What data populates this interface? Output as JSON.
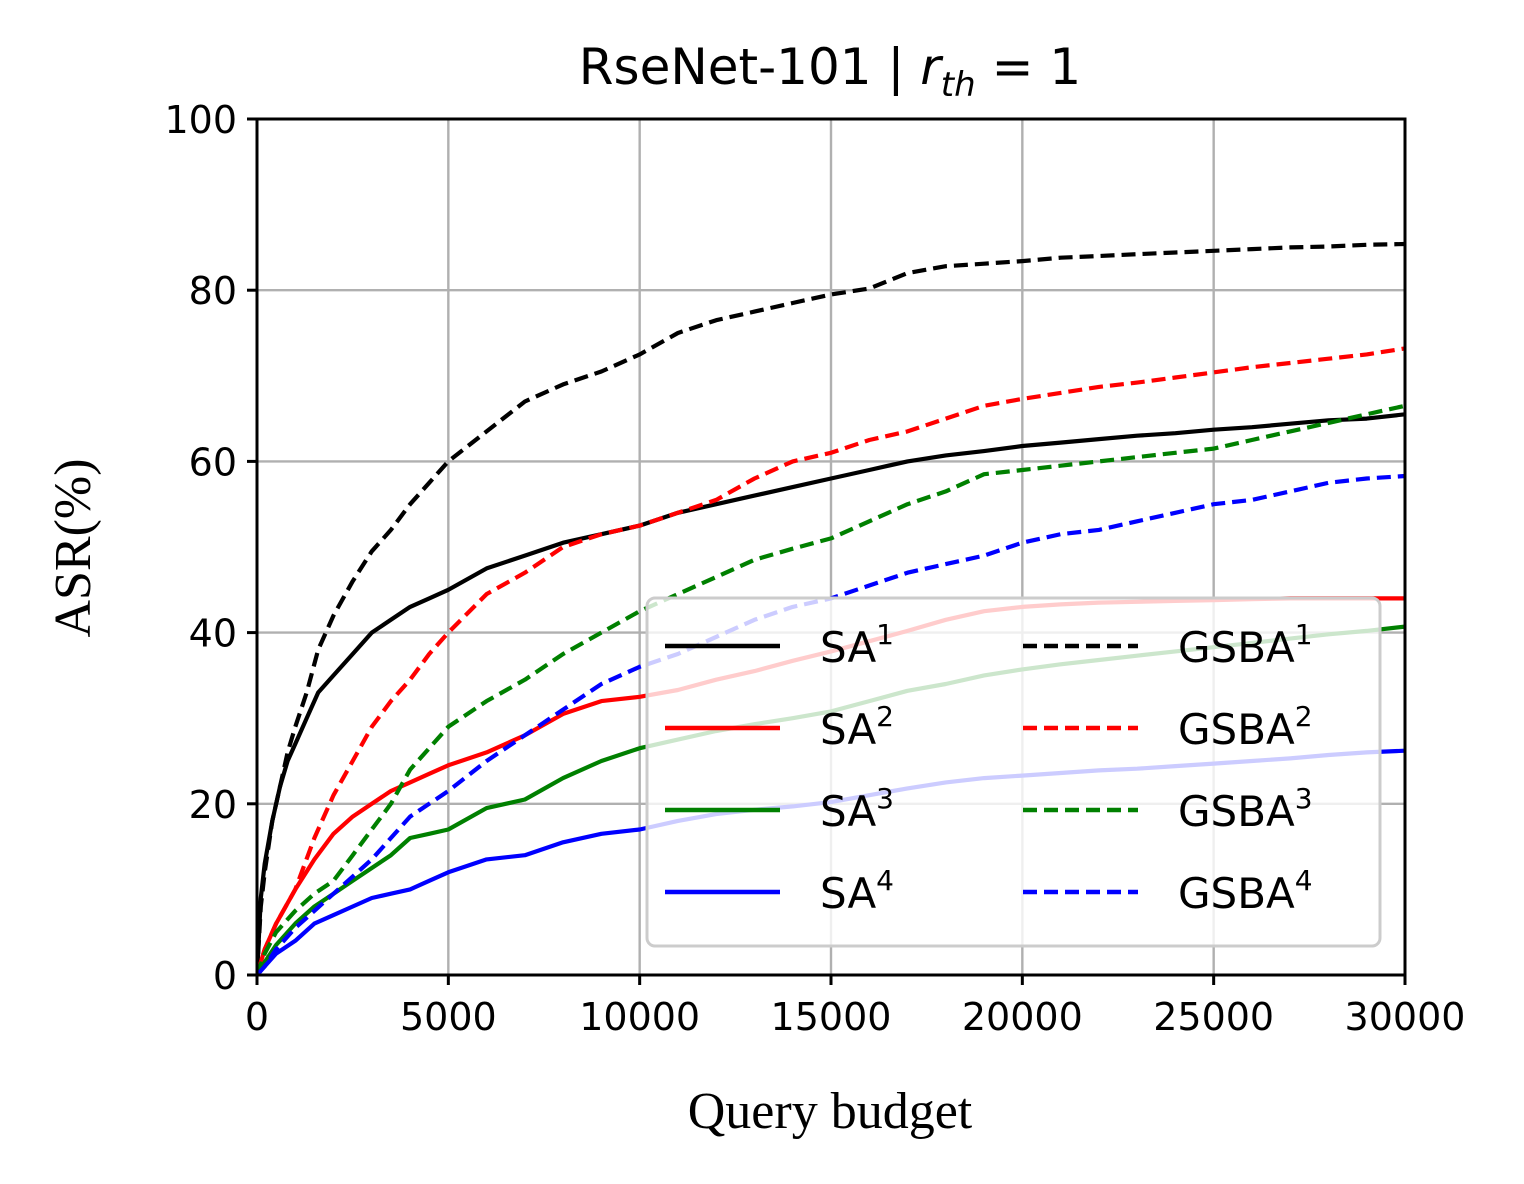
{
  "chart_data": {
    "type": "line",
    "title": {
      "prefix": "RseNet-101  |  ",
      "var": "r",
      "var_sub": "th",
      "suffix": " = 1"
    },
    "xlabel": "Query budget",
    "ylabel": "ASR(%)",
    "xlim": [
      0,
      30000
    ],
    "ylim": [
      0,
      100
    ],
    "xticks": [
      0,
      5000,
      10000,
      15000,
      20000,
      25000,
      30000
    ],
    "yticks": [
      0,
      20,
      40,
      60,
      80,
      100
    ],
    "grid": true,
    "legend": {
      "location": "lower-right",
      "columns": 2
    },
    "series": [
      {
        "name": "SA",
        "sup": "1",
        "color": "#000000",
        "style": "solid",
        "x": [
          0,
          100,
          200,
          400,
          600,
          800,
          1000,
          1300,
          1600,
          2000,
          2500,
          3000,
          3500,
          4000,
          4500,
          5000,
          6000,
          7000,
          8000,
          9000,
          10000,
          11000,
          12000,
          13000,
          14000,
          15000,
          16000,
          17000,
          18000,
          19000,
          20000,
          21000,
          22000,
          23000,
          24000,
          25000,
          26000,
          27000,
          28000,
          29000,
          30000
        ],
        "y": [
          0,
          9,
          13,
          18,
          22,
          25,
          27,
          30,
          33,
          35,
          37.5,
          40,
          41.5,
          43,
          44,
          45,
          47.5,
          49,
          50.5,
          51.5,
          52.5,
          54,
          55,
          56,
          57,
          58,
          59,
          60,
          60.7,
          61.2,
          61.8,
          62.2,
          62.6,
          63,
          63.3,
          63.7,
          64,
          64.4,
          64.8,
          65,
          65.5
        ]
      },
      {
        "name": "SA",
        "sup": "2",
        "color": "#ff0000",
        "style": "solid",
        "x": [
          0,
          200,
          500,
          1000,
          1500,
          2000,
          2500,
          3000,
          3500,
          4000,
          4500,
          5000,
          6000,
          7000,
          8000,
          9000,
          10000,
          11000,
          12000,
          13000,
          14000,
          15000,
          16000,
          17000,
          18000,
          19000,
          20000,
          21000,
          22000,
          23000,
          24000,
          25000,
          26000,
          27000,
          28000,
          29000,
          30000
        ],
        "y": [
          0,
          3,
          6,
          10,
          13.5,
          16.5,
          18.5,
          20,
          21.5,
          22.5,
          23.5,
          24.5,
          26,
          28,
          30.5,
          32,
          32.5,
          33.3,
          34.5,
          35.5,
          36.7,
          37.8,
          39,
          40.2,
          41.5,
          42.5,
          43,
          43.3,
          43.5,
          43.6,
          43.7,
          43.8,
          43.9,
          44,
          44,
          44,
          44
        ]
      },
      {
        "name": "SA",
        "sup": "3",
        "color": "#008000",
        "style": "solid",
        "x": [
          0,
          200,
          500,
          1000,
          1500,
          2000,
          2500,
          3000,
          3500,
          4000,
          4500,
          5000,
          6000,
          7000,
          8000,
          9000,
          10000,
          11000,
          12000,
          13000,
          14000,
          15000,
          16000,
          17000,
          18000,
          19000,
          20000,
          21000,
          22000,
          23000,
          24000,
          25000,
          26000,
          27000,
          28000,
          29000,
          30000
        ],
        "y": [
          0,
          1.5,
          3.5,
          6,
          8,
          9.5,
          11,
          12.5,
          14,
          16,
          16.5,
          17,
          19.5,
          20.5,
          23,
          25,
          26.5,
          27.5,
          28.5,
          29.3,
          30,
          30.8,
          32,
          33.2,
          34,
          35,
          35.7,
          36.3,
          36.8,
          37.3,
          37.8,
          38.3,
          38.8,
          39.3,
          39.8,
          40.2,
          40.7
        ]
      },
      {
        "name": "SA",
        "sup": "4",
        "color": "#0000ff",
        "style": "solid",
        "x": [
          0,
          200,
          500,
          1000,
          1500,
          2000,
          2500,
          3000,
          3500,
          4000,
          4500,
          5000,
          6000,
          7000,
          8000,
          9000,
          10000,
          11000,
          12000,
          13000,
          14000,
          15000,
          16000,
          17000,
          18000,
          19000,
          20000,
          21000,
          22000,
          23000,
          24000,
          25000,
          26000,
          27000,
          28000,
          29000,
          30000
        ],
        "y": [
          0,
          1,
          2.5,
          4,
          6,
          7,
          8,
          9,
          9.5,
          10,
          11,
          12,
          13.5,
          14,
          15.5,
          16.5,
          17,
          18,
          18.8,
          19.3,
          19.7,
          20.2,
          21,
          21.8,
          22.5,
          23,
          23.3,
          23.6,
          23.9,
          24.1,
          24.4,
          24.7,
          25,
          25.3,
          25.7,
          26,
          26.2
        ]
      },
      {
        "name": "GSBA",
        "sup": "1",
        "color": "#000000",
        "style": "dashed",
        "x": [
          0,
          100,
          200,
          400,
          600,
          800,
          1000,
          1300,
          1600,
          2000,
          2500,
          3000,
          3500,
          4000,
          4500,
          5000,
          6000,
          7000,
          8000,
          9000,
          10000,
          11000,
          12000,
          13000,
          14000,
          15000,
          16000,
          17000,
          18000,
          19000,
          20000,
          21000,
          22000,
          23000,
          24000,
          25000,
          26000,
          27000,
          28000,
          29000,
          30000
        ],
        "y": [
          0,
          8,
          12,
          18,
          22,
          26,
          29,
          33,
          38,
          42,
          46,
          49.5,
          52,
          55,
          57.5,
          60,
          63.5,
          67,
          69,
          70.5,
          72.5,
          75,
          76.5,
          77.5,
          78.5,
          79.5,
          80.2,
          82,
          82.8,
          83.1,
          83.4,
          83.8,
          84,
          84.2,
          84.4,
          84.6,
          84.8,
          85,
          85.1,
          85.3,
          85.4
        ]
      },
      {
        "name": "GSBA",
        "sup": "2",
        "color": "#ff0000",
        "style": "dashed",
        "x": [
          0,
          200,
          500,
          1000,
          1500,
          2000,
          2500,
          3000,
          3500,
          4000,
          4500,
          5000,
          6000,
          7000,
          8000,
          9000,
          10000,
          11000,
          12000,
          13000,
          14000,
          15000,
          16000,
          17000,
          18000,
          19000,
          20000,
          21000,
          22000,
          23000,
          24000,
          25000,
          26000,
          27000,
          28000,
          29000,
          30000
        ],
        "y": [
          0,
          3,
          6,
          10,
          16,
          21,
          25,
          29,
          32,
          34.5,
          37.5,
          40,
          44.5,
          47,
          50,
          51.5,
          52.5,
          54,
          55.5,
          58,
          60,
          61,
          62.5,
          63.5,
          65,
          66.5,
          67.3,
          68,
          68.7,
          69.2,
          69.8,
          70.4,
          71,
          71.5,
          72,
          72.5,
          73.2
        ]
      },
      {
        "name": "GSBA",
        "sup": "3",
        "color": "#008000",
        "style": "dashed",
        "x": [
          0,
          200,
          500,
          1000,
          1500,
          2000,
          2500,
          3000,
          3500,
          4000,
          4500,
          5000,
          6000,
          7000,
          8000,
          9000,
          10000,
          11000,
          12000,
          13000,
          14000,
          15000,
          16000,
          17000,
          18000,
          19000,
          20000,
          21000,
          22000,
          23000,
          24000,
          25000,
          26000,
          27000,
          28000,
          29000,
          30000
        ],
        "y": [
          0,
          2.5,
          5,
          7.5,
          9.5,
          11,
          14,
          17,
          20,
          24,
          26.5,
          29,
          32,
          34.5,
          37.5,
          40,
          42.5,
          44.5,
          46.5,
          48.5,
          49.8,
          51,
          53,
          55,
          56.5,
          58.5,
          59,
          59.5,
          60,
          60.5,
          61,
          61.5,
          62.5,
          63.5,
          64.5,
          65.5,
          66.5
        ]
      },
      {
        "name": "GSBA",
        "sup": "4",
        "color": "#0000ff",
        "style": "dashed",
        "x": [
          0,
          200,
          500,
          1000,
          1500,
          2000,
          2500,
          3000,
          3500,
          4000,
          4500,
          5000,
          6000,
          7000,
          8000,
          9000,
          10000,
          11000,
          12000,
          13000,
          14000,
          15000,
          16000,
          17000,
          18000,
          19000,
          20000,
          21000,
          22000,
          23000,
          24000,
          25000,
          26000,
          27000,
          28000,
          29000,
          30000
        ],
        "y": [
          0,
          1,
          3,
          5.5,
          7.5,
          9.5,
          11.5,
          13.5,
          16,
          18.5,
          20,
          21.5,
          25,
          28,
          31,
          34,
          36,
          37.5,
          39.5,
          41.5,
          43,
          44,
          45.5,
          47,
          48,
          49,
          50.5,
          51.5,
          52,
          53,
          54,
          55,
          55.5,
          56.5,
          57.5,
          58,
          58.3
        ]
      }
    ]
  }
}
